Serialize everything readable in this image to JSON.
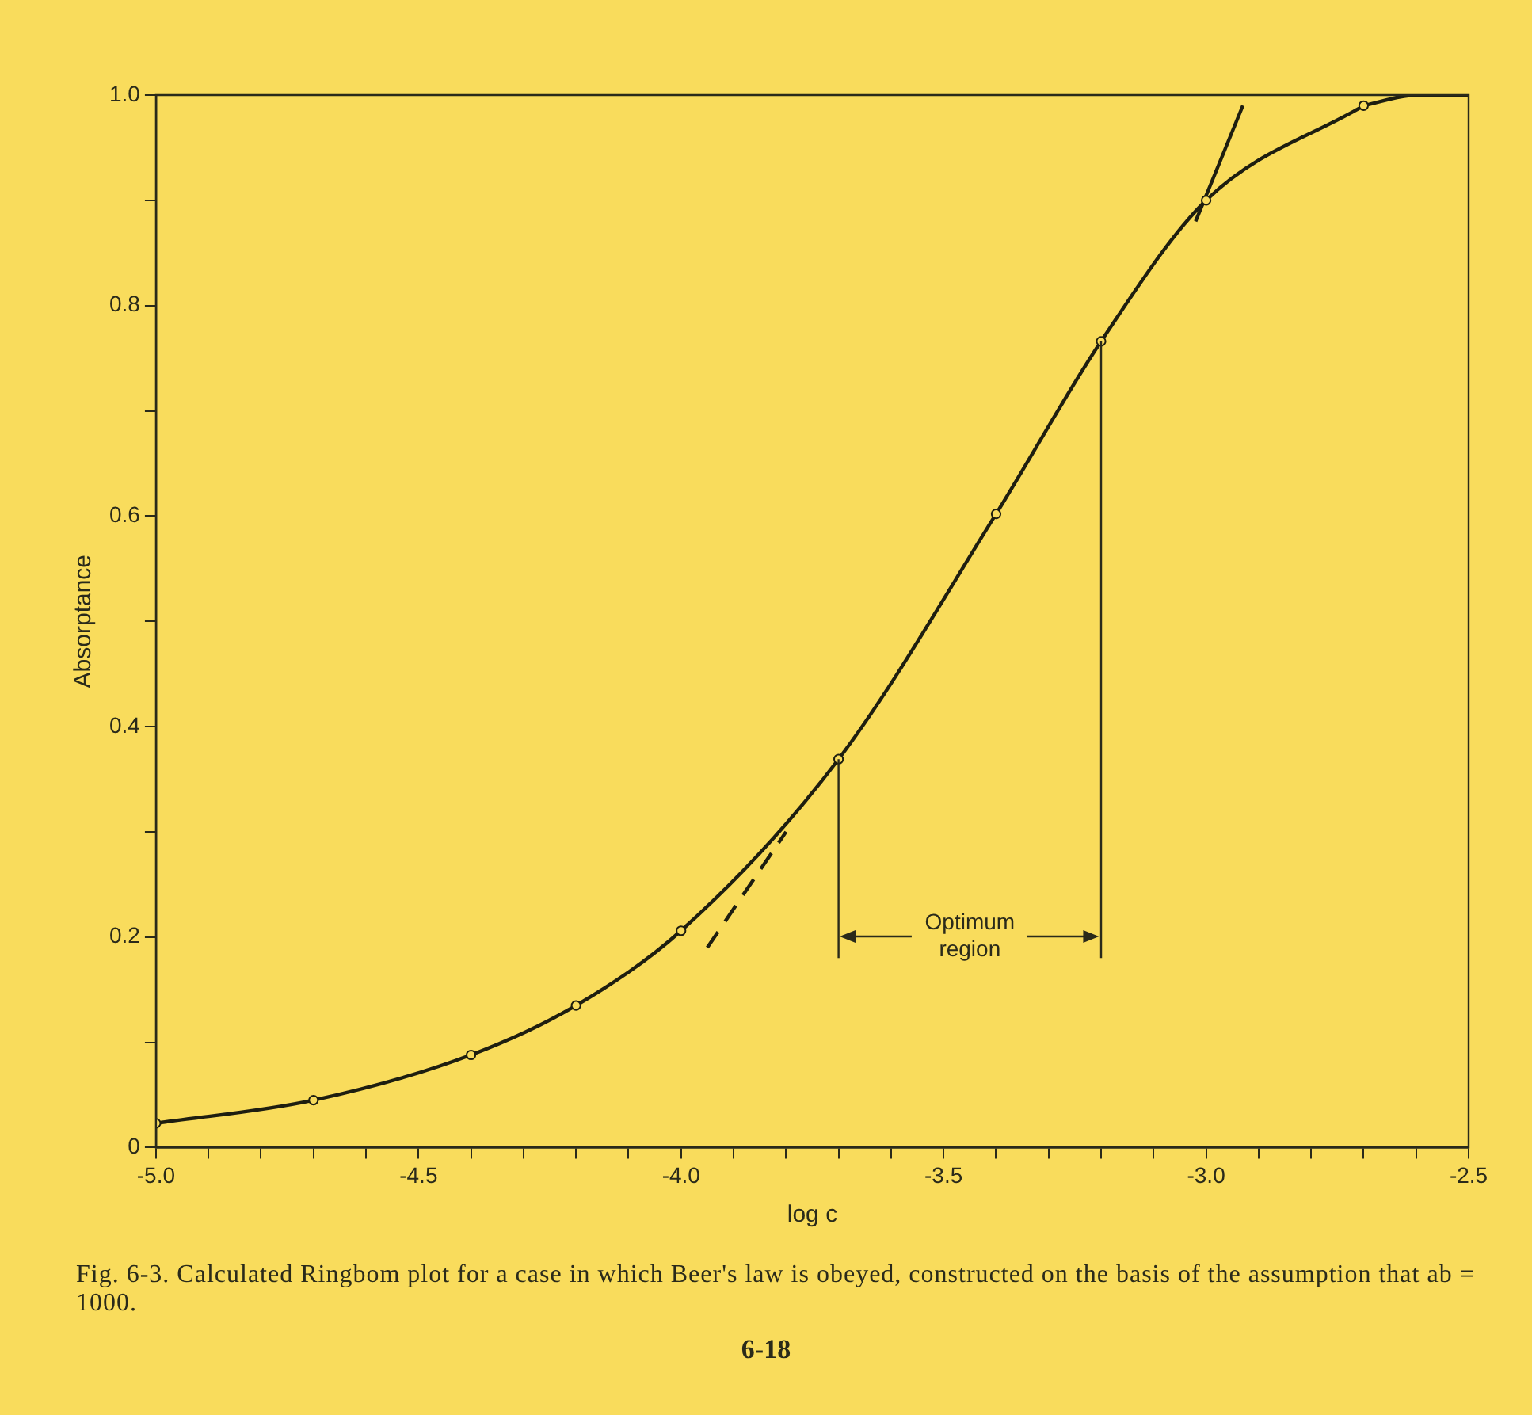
{
  "chart_data": {
    "type": "line",
    "xlabel": "log c",
    "ylabel": "Absorptance",
    "x": [
      -5.0,
      -4.7,
      -4.4,
      -4.2,
      -4.0,
      -3.7,
      -3.4,
      -3.2,
      -3.0,
      -2.7
    ],
    "series": [
      {
        "color": "#1e1e10",
        "values": [
          0.023,
          0.045,
          0.088,
          0.135,
          0.206,
          0.369,
          0.602,
          0.766,
          0.9,
          0.99
        ]
      },
      {
        "type": "line",
        "x": [
          -2.7,
          -2.6,
          -2.5
        ],
        "values": [
          0.99,
          1.0,
          1.0
        ],
        "color": "#1e1e10",
        "marker": "none"
      },
      {
        "type": "line",
        "x": [
          -3.95,
          -3.8
        ],
        "values": [
          0.19,
          0.3
        ],
        "color": "#1e1e10",
        "line_style": "dashed",
        "marker": "none"
      },
      {
        "type": "line",
        "x": [
          -3.02,
          -2.93
        ],
        "values": [
          0.88,
          0.99
        ],
        "color": "#1e1e10",
        "line_style": "solid",
        "marker": "none"
      }
    ],
    "xlim": [
      -5.0,
      -2.5
    ],
    "xticks": [
      {
        "value": -5.0,
        "label": "-5.0"
      },
      {
        "value": -4.9,
        "label": null
      },
      {
        "value": -4.8,
        "label": null
      },
      {
        "value": -4.7,
        "label": null
      },
      {
        "value": -4.6,
        "label": null
      },
      {
        "value": -4.5,
        "label": "-4.5"
      },
      {
        "value": -4.4,
        "label": null
      },
      {
        "value": -4.3,
        "label": null
      },
      {
        "value": -4.2,
        "label": null
      },
      {
        "value": -4.1,
        "label": null
      },
      {
        "value": -4.0,
        "label": "-4.0"
      },
      {
        "value": -3.9,
        "label": null
      },
      {
        "value": -3.8,
        "label": null
      },
      {
        "value": -3.7,
        "label": null
      },
      {
        "value": -3.6,
        "label": null
      },
      {
        "value": -3.5,
        "label": "-3.5"
      },
      {
        "value": -3.4,
        "label": null
      },
      {
        "value": -3.3,
        "label": null
      },
      {
        "value": -3.2,
        "label": null
      },
      {
        "value": -3.1,
        "label": null
      },
      {
        "value": -3.0,
        "label": "-3.0"
      },
      {
        "value": -2.9,
        "label": null
      },
      {
        "value": -2.8,
        "label": null
      },
      {
        "value": -2.7,
        "label": null
      },
      {
        "value": -2.6,
        "label": null
      },
      {
        "value": -2.5,
        "label": "-2.5"
      }
    ],
    "ylim": [
      0,
      1.0
    ],
    "yticks": [
      0,
      {
        "value": 0.1,
        "label": null
      },
      0.2,
      {
        "value": 0.3,
        "label": null
      },
      0.4,
      {
        "value": 0.5,
        "label": null
      },
      0.6,
      {
        "value": 0.7,
        "label": null
      },
      0.8,
      {
        "value": 0.9,
        "label": null
      },
      {
        "value": 1.0,
        "label": "1.0"
      }
    ],
    "ref_lines": [
      {
        "axis": "x",
        "value": -3.7
      },
      {
        "axis": "x",
        "value": -3.2
      }
    ],
    "grid": false,
    "legend": false,
    "line_style": "solid",
    "marker": "circle",
    "annotations": [
      "Optimum region",
      "Fig. 6-3. Calculated Ringbom plot for a case in which Beer's law is obeyed, constructed on the basis of the assumption that ab = 1000.",
      "6-18"
    ]
  }
}
